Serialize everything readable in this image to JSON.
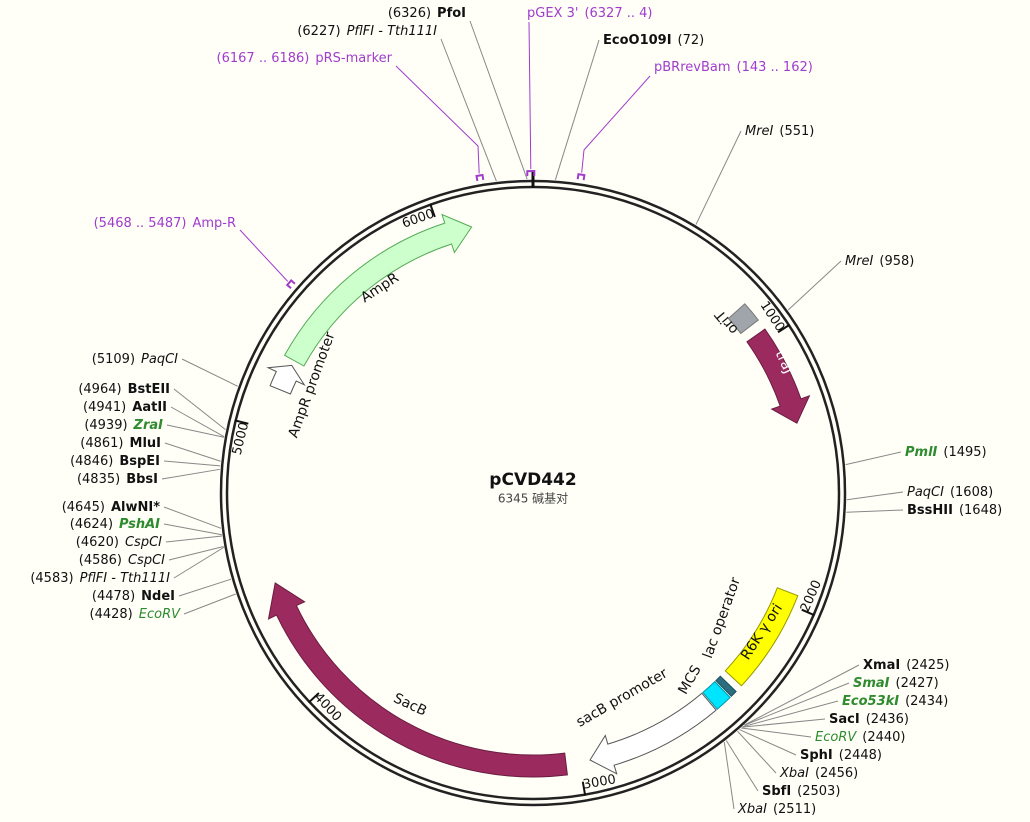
{
  "title": "pCVD442",
  "length_label": "6345 碱基对",
  "sites": [
    {
      "name": "PfoI",
      "position": "(6326)",
      "style": "bold"
    },
    {
      "name": "PflFI - Tth111I",
      "position": "(6227)",
      "style": "plain"
    },
    {
      "name": "EcoO109I",
      "position": "(72)",
      "style": "bold"
    },
    {
      "name": "MreI",
      "position": "(551)",
      "style": "plain"
    },
    {
      "name": "MreI",
      "position": "(958)",
      "style": "plain"
    },
    {
      "name": "PmlI",
      "position": "(1495)",
      "style": "green"
    },
    {
      "name": "PaqCI",
      "position": "(1608)",
      "style": "plain"
    },
    {
      "name": "BssHII",
      "position": "(1648)",
      "style": "bold"
    },
    {
      "name": "XmaI",
      "position": "(2425)",
      "style": "bold"
    },
    {
      "name": "SmaI",
      "position": "(2427)",
      "style": "green"
    },
    {
      "name": "Eco53kI",
      "position": "(2434)",
      "style": "green"
    },
    {
      "name": "SacI",
      "position": "(2436)",
      "style": "bold"
    },
    {
      "name": "EcoRV",
      "position": "(2440)",
      "style": "green-plain"
    },
    {
      "name": "SphI",
      "position": "(2448)",
      "style": "bold"
    },
    {
      "name": "XbaI",
      "position": "(2456)",
      "style": "plain"
    },
    {
      "name": "SbfI",
      "position": "(2503)",
      "style": "bold"
    },
    {
      "name": "XbaI",
      "position": "(2511)",
      "style": "plain"
    },
    {
      "name": "PaqCI",
      "position": "(5109)",
      "style": "plain"
    },
    {
      "name": "BstEII",
      "position": "(4964)",
      "style": "bold"
    },
    {
      "name": "AatII",
      "position": "(4941)",
      "style": "bold"
    },
    {
      "name": "ZraI",
      "position": "(4939)",
      "style": "green"
    },
    {
      "name": "MluI",
      "position": "(4861)",
      "style": "bold"
    },
    {
      "name": "BspEI",
      "position": "(4846)",
      "style": "bold"
    },
    {
      "name": "BbsI",
      "position": "(4835)",
      "style": "bold"
    },
    {
      "name": "AlwNI*",
      "position": "(4645)",
      "style": "bold"
    },
    {
      "name": "PshAI",
      "position": "(4624)",
      "style": "green"
    },
    {
      "name": "CspCI",
      "position": "(4620)",
      "style": "plain"
    },
    {
      "name": "CspCI",
      "position": "(4586)",
      "style": "plain"
    },
    {
      "name": "PflFI - Tth111I",
      "position": "(4583)",
      "style": "plain"
    },
    {
      "name": "NdeI",
      "position": "(4478)",
      "style": "bold"
    },
    {
      "name": "EcoRV",
      "position": "(4428)",
      "style": "green-plain"
    }
  ],
  "primers": [
    {
      "name": "pGEX 3'",
      "range": "(6327 .. 4)"
    },
    {
      "name": "pRS-marker",
      "range": "(6167 .. 6186)"
    },
    {
      "name": "pBRrevBam",
      "range": "(143 .. 162)"
    },
    {
      "name": "Amp-R",
      "range": "(5468 .. 5487)"
    }
  ],
  "features": [
    {
      "label": "AmpR"
    },
    {
      "label": "AmpR promoter"
    },
    {
      "label": "oriT"
    },
    {
      "label": "traJ"
    },
    {
      "label": "R6K γ ori"
    },
    {
      "label": "lac operator"
    },
    {
      "label": "MCS"
    },
    {
      "label": "sacB promoter"
    },
    {
      "label": "SacB"
    }
  ],
  "ticks": [
    1000,
    2000,
    3000,
    4000,
    5000,
    6000
  ]
}
